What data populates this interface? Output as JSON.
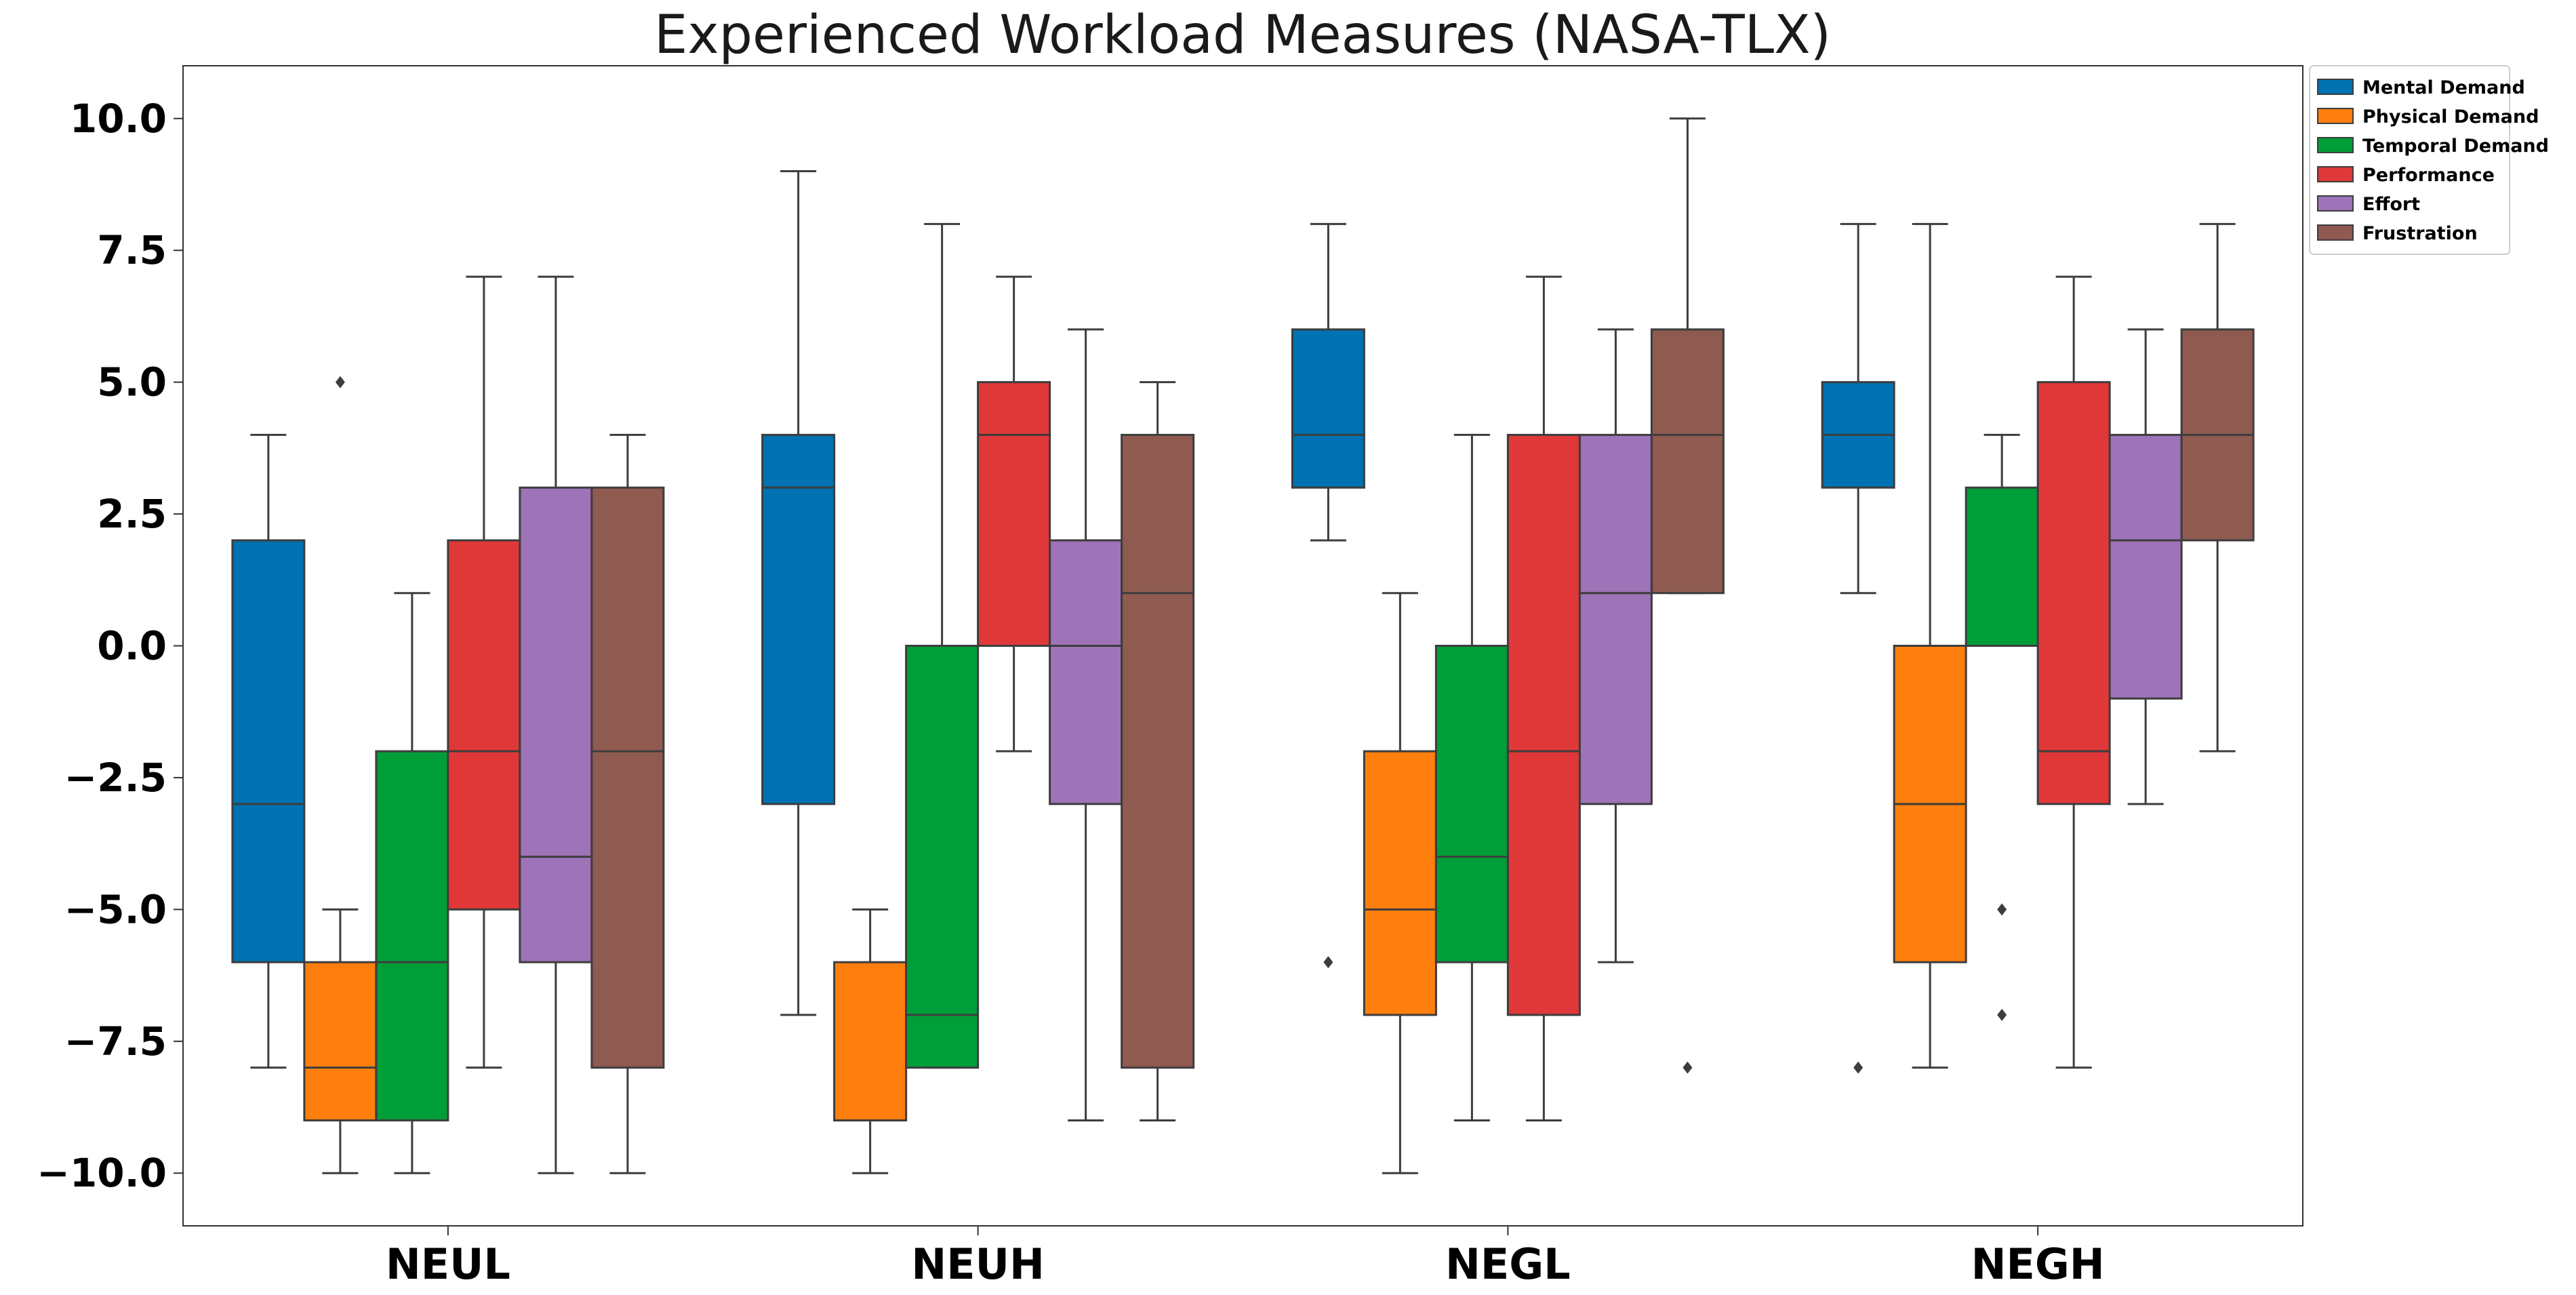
{
  "chart_data": {
    "type": "box",
    "title": "Experienced Workload Measures (NASA-TLX)",
    "xlabel": "",
    "ylabel": "",
    "ylim": [
      -11,
      11
    ],
    "yticks": [
      10.0,
      7.5,
      5.0,
      2.5,
      0.0,
      -2.5,
      -5.0,
      -7.5,
      -10.0
    ],
    "ytick_labels": [
      "10.0",
      "7.5",
      "5.0",
      "2.5",
      "0.0",
      "−2.5",
      "−5.0",
      "−7.5",
      "−10.0"
    ],
    "categories": [
      "NEUL",
      "NEUH",
      "NEGL",
      "NEGH"
    ],
    "legend_position": "top-right outside",
    "series": [
      {
        "name": "Mental Demand",
        "color": "#0072b2",
        "boxes": [
          {
            "min": -8,
            "q1": -6,
            "median": -3,
            "q3": 2,
            "max": 4,
            "outliers": []
          },
          {
            "min": -7,
            "q1": -3,
            "median": 3,
            "q3": 4,
            "max": 9,
            "outliers": []
          },
          {
            "min": 2,
            "q1": 3,
            "median": 4,
            "q3": 6,
            "max": 8,
            "outliers": [
              -6
            ]
          },
          {
            "min": 1,
            "q1": 3,
            "median": 4,
            "q3": 5,
            "max": 8,
            "outliers": [
              -8
            ]
          }
        ]
      },
      {
        "name": "Physical Demand",
        "color": "#ff7f0e",
        "boxes": [
          {
            "min": -10,
            "q1": -9,
            "median": -8,
            "q3": -6,
            "max": -5,
            "outliers": [
              5
            ]
          },
          {
            "min": -10,
            "q1": -9,
            "median": -9,
            "q3": -6,
            "max": -5,
            "outliers": []
          },
          {
            "min": -10,
            "q1": -7,
            "median": -5,
            "q3": -2,
            "max": 1,
            "outliers": []
          },
          {
            "min": -8,
            "q1": -6,
            "median": -3,
            "q3": 0,
            "max": 8,
            "outliers": []
          }
        ]
      },
      {
        "name": "Temporal Demand",
        "color": "#009e38",
        "boxes": [
          {
            "min": -10,
            "q1": -9,
            "median": -6,
            "q3": -2,
            "max": 1,
            "outliers": []
          },
          {
            "min": -8,
            "q1": -8,
            "median": -7,
            "q3": 0,
            "max": 8,
            "outliers": []
          },
          {
            "min": -9,
            "q1": -6,
            "median": -4,
            "q3": 0,
            "max": 4,
            "outliers": []
          },
          {
            "min": 0,
            "q1": 0,
            "median": 0,
            "q3": 3,
            "max": 4,
            "outliers": [
              -5,
              -7
            ]
          }
        ]
      },
      {
        "name": "Performance",
        "color": "#e03838",
        "boxes": [
          {
            "min": -8,
            "q1": -5,
            "median": -2,
            "q3": 2,
            "max": 7,
            "outliers": []
          },
          {
            "min": -2,
            "q1": 0,
            "median": 4,
            "q3": 5,
            "max": 7,
            "outliers": []
          },
          {
            "min": -9,
            "q1": -7,
            "median": -2,
            "q3": 4,
            "max": 7,
            "outliers": []
          },
          {
            "min": -8,
            "q1": -3,
            "median": -2,
            "q3": 5,
            "max": 7,
            "outliers": []
          }
        ]
      },
      {
        "name": "Effort",
        "color": "#9e73b8",
        "boxes": [
          {
            "min": -10,
            "q1": -6,
            "median": -4,
            "q3": 3,
            "max": 7,
            "outliers": []
          },
          {
            "min": -9,
            "q1": -3,
            "median": 0,
            "q3": 2,
            "max": 6,
            "outliers": []
          },
          {
            "min": -6,
            "q1": -3,
            "median": 1,
            "q3": 4,
            "max": 6,
            "outliers": []
          },
          {
            "min": -3,
            "q1": -1,
            "median": 2,
            "q3": 4,
            "max": 6,
            "outliers": []
          }
        ]
      },
      {
        "name": "Frustration",
        "color": "#8f5a50",
        "boxes": [
          {
            "min": -10,
            "q1": -8,
            "median": -2,
            "q3": 3,
            "max": 4,
            "outliers": []
          },
          {
            "min": -9,
            "q1": -8,
            "median": 1,
            "q3": 4,
            "max": 5,
            "outliers": []
          },
          {
            "min": 1,
            "q1": 1,
            "median": 4,
            "q3": 6,
            "max": 10,
            "outliers": [
              -8
            ]
          },
          {
            "min": -2,
            "q1": 2,
            "median": 4,
            "q3": 6,
            "max": 8,
            "outliers": []
          }
        ]
      }
    ]
  }
}
